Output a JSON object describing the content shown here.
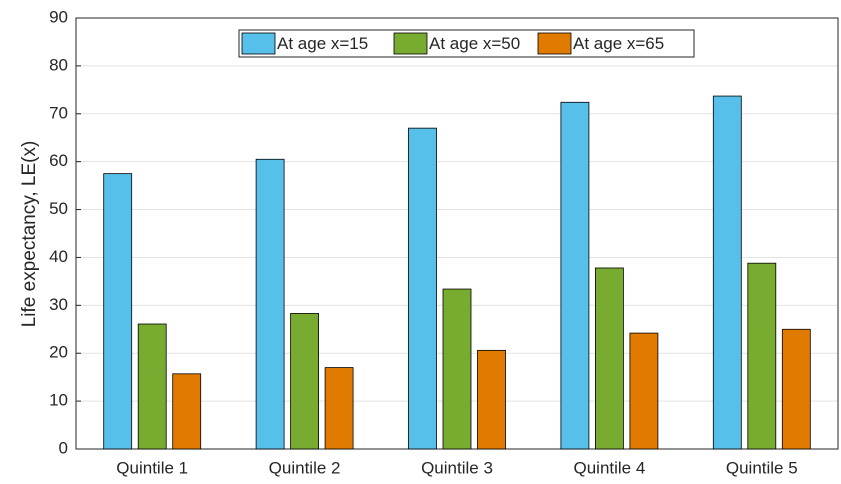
{
  "chart_data": {
    "type": "bar",
    "ylabel": "Life expectancy, LE(x)",
    "categories": [
      "Quintile 1",
      "Quintile 2",
      "Quintile 3",
      "Quintile 4",
      "Quintile 5"
    ],
    "series": [
      {
        "name": "At age x=15",
        "color": "#56bfea",
        "values": [
          57.5,
          60.5,
          67.0,
          72.4,
          73.7
        ]
      },
      {
        "name": "At age x=50",
        "color": "#77ac30",
        "values": [
          26.1,
          28.3,
          33.4,
          37.8,
          38.8
        ]
      },
      {
        "name": "At age x=65",
        "color": "#e07b00",
        "values": [
          15.7,
          17.0,
          20.6,
          24.2,
          25.0
        ]
      }
    ],
    "ylim": [
      0,
      90
    ],
    "yticks": [
      0,
      10,
      20,
      30,
      40,
      50,
      60,
      70,
      80,
      90
    ],
    "grid": true,
    "legend": "top"
  }
}
